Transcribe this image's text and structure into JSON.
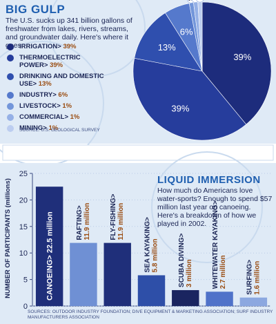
{
  "chart_data": [
    {
      "type": "pie",
      "title": "BIG GULP",
      "subtitle": "The U.S. sucks up 341 billion gallons of freshwater from lakes, rivers, streams, and groundwater daily. Here's where it goes.",
      "categories": [
        "IRRIGATION>",
        "THERMOELECTRIC POWER>",
        "DRINKING AND DOMESTIC USE>",
        "INDUSTRY>",
        "LIVESTOCK>",
        "COMMERCIAL>",
        "MINING>"
      ],
      "values": [
        39,
        39,
        13,
        6,
        1,
        1,
        1
      ],
      "value_labels": [
        "39%",
        "39%",
        "13%",
        "6%",
        "1%",
        "1%",
        "1%"
      ],
      "colors": [
        "#1d2c7c",
        "#263d9c",
        "#2f4fae",
        "#5579cc",
        "#7396da",
        "#95b0e6",
        "#bccdf0"
      ],
      "source": "SOURCE: U.S. GEOLOGICAL SURVEY"
    },
    {
      "type": "bar",
      "title": "LIQUID IMMERSION",
      "subtitle": "How much do Americans love water-sports? Enough to spend $57 million last year on canoeing. Here's a breakdown of how we played in 2002.",
      "ylabel": "NUMBER OF PARTICIPANTS (millions)",
      "categories": [
        "CANOEING>",
        "RAFTING>",
        "FLY-FISHING>",
        "SEA KAYAKING>",
        "SCUBA DIVING>",
        "WHITEWATER KAYAKING>",
        "SURFING>"
      ],
      "values": [
        22.5,
        11.9,
        11.9,
        5.8,
        3,
        2.7,
        1.6
      ],
      "value_labels": [
        "22.5 million",
        "11.9 million",
        "11.9 million",
        "5.8 million",
        "3 million",
        "2.7 million",
        "1.6 million"
      ],
      "colors": [
        "#1f2f7a",
        "#6f90d4",
        "#1f2f7a",
        "#2e4fa8",
        "#1a2560",
        "#4f72c9",
        "#8ca8e0"
      ],
      "ylim": [
        0,
        25
      ],
      "yticks": [
        0,
        5,
        10,
        15,
        20,
        25
      ],
      "source": "SOURCES: OUTDOOR INDUSTRY FOUNDATION; DIVE EQUIPMENT & MARKETING ASSOCIATION; SURF INDUSTRY MANUFACTURERS ASSOCIATION"
    }
  ]
}
